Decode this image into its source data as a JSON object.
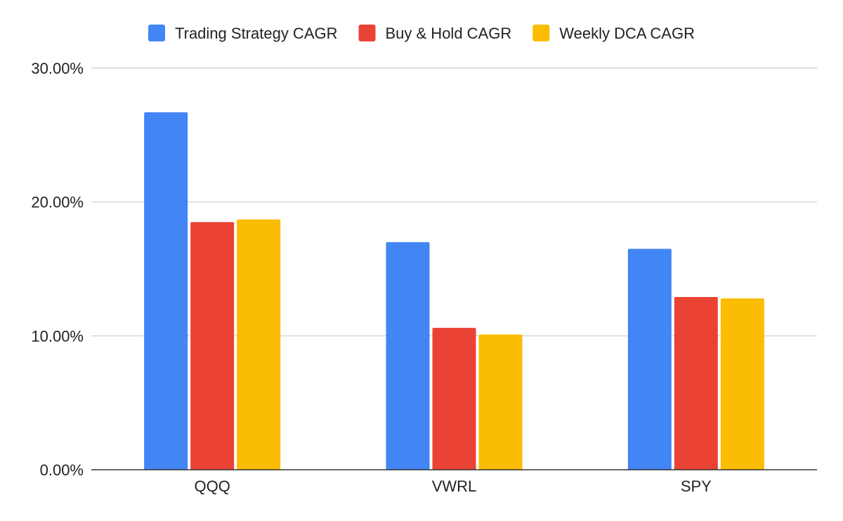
{
  "chart_data": {
    "type": "bar",
    "title": "",
    "xlabel": "",
    "ylabel": "",
    "categories": [
      "QQQ",
      "VWRL",
      "SPY"
    ],
    "series": [
      {
        "name": "Trading Strategy CAGR",
        "color": "#4285F4",
        "values": [
          26.7,
          17.0,
          16.5
        ]
      },
      {
        "name": "Buy & Hold CAGR",
        "color": "#EA4335",
        "values": [
          18.5,
          10.6,
          12.9
        ]
      },
      {
        "name": "Weekly DCA CAGR",
        "color": "#FBBC04",
        "values": [
          18.7,
          10.1,
          12.8
        ]
      }
    ],
    "ylim": [
      0,
      30
    ],
    "yticks": [
      0,
      10,
      20,
      30
    ],
    "ytick_labels": [
      "0.00%",
      "10.00%",
      "20.00%",
      "30.00%"
    ],
    "grid": true,
    "legend_position": "top-center"
  }
}
